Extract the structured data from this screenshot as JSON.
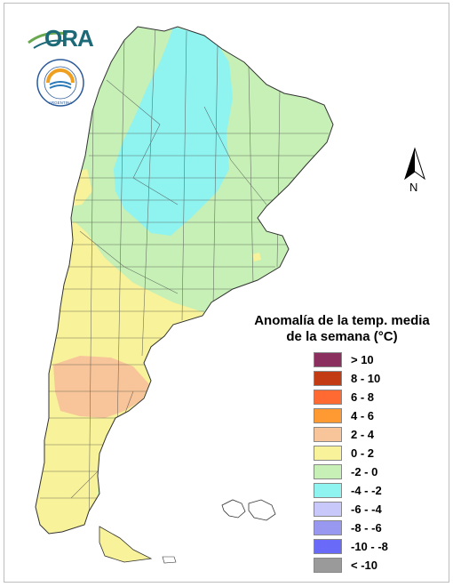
{
  "logo": {
    "text": "ORA",
    "seal_ring_text": "ARGENTINA",
    "brand_color": "#1c6a77",
    "accent_color": "#6aa84f"
  },
  "north_arrow": {
    "label": "N"
  },
  "legend": {
    "title_line1": "Anomalía de la temp. media",
    "title_line2": "de la semana (°C)",
    "items": [
      {
        "label": "> 10",
        "color": "#8b2f5e"
      },
      {
        "label": "8 - 10",
        "color": "#c23b12"
      },
      {
        "label": "6 - 8",
        "color": "#ff6a33"
      },
      {
        "label": "4 - 6",
        "color": "#ff9a33"
      },
      {
        "label": "2 - 4",
        "color": "#f8c59a"
      },
      {
        "label": "0 - 2",
        "color": "#f8f29a"
      },
      {
        "label": "-2 - 0",
        "color": "#c6f0b6"
      },
      {
        "label": "-4 - -2",
        "color": "#8ff3f0"
      },
      {
        "label": "-6 - -4",
        "color": "#c8c8fa"
      },
      {
        "label": "-8 - -6",
        "color": "#9898f0"
      },
      {
        "label": "-10 - -8",
        "color": "#6a6af8"
      },
      {
        "label": "< -10",
        "color": "#9a9a9a"
      }
    ]
  },
  "map_regions": [
    {
      "class": "0 - 2",
      "color": "#f8f29a"
    },
    {
      "class": "-2 - 0",
      "color": "#c6f0b6"
    },
    {
      "class": "-4 - -2",
      "color": "#8ff3f0"
    },
    {
      "class": "2 - 4",
      "color": "#f8c59a"
    }
  ]
}
